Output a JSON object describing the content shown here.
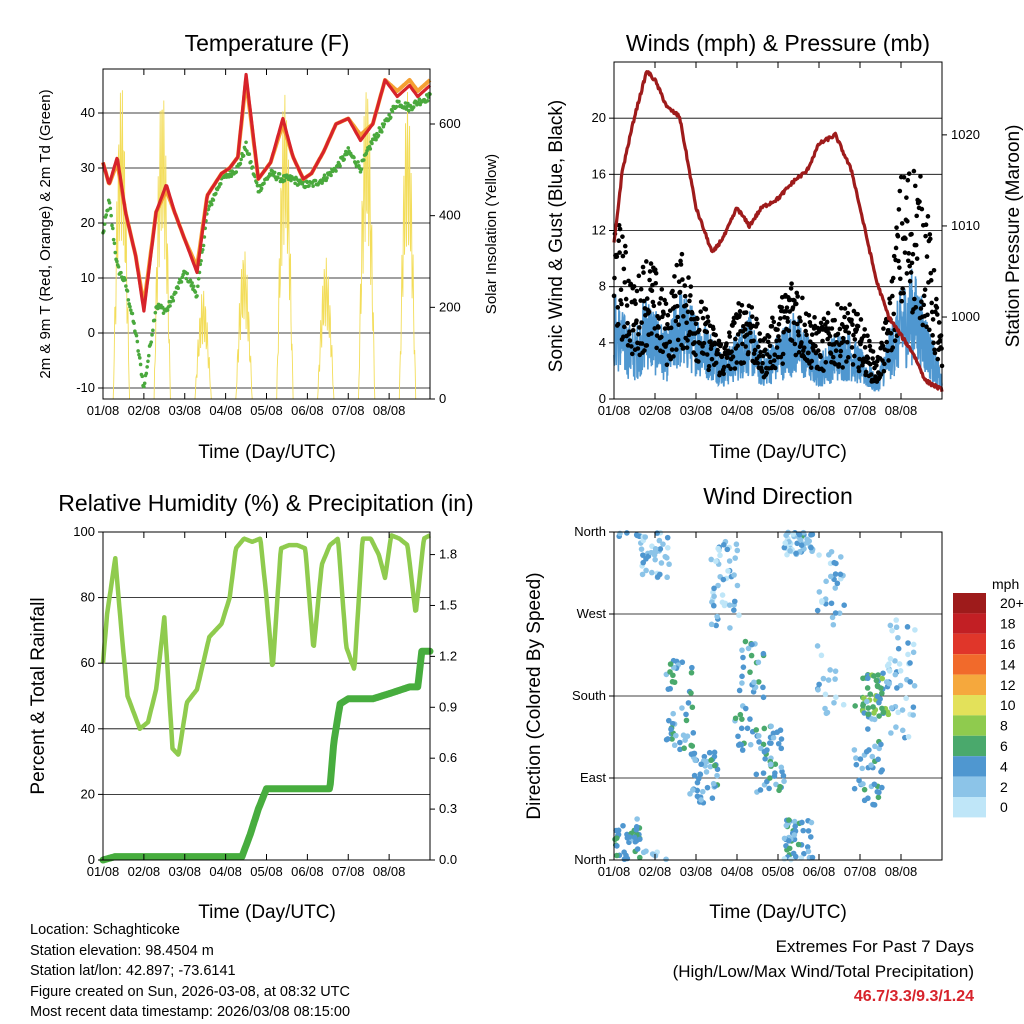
{
  "x_ticks": [
    "01/08",
    "02/08",
    "03/08",
    "04/08",
    "05/08",
    "06/08",
    "07/08",
    "08/08"
  ],
  "x_label": "Time (Day/UTC)",
  "info": {
    "location": "Location: Schaghticoke",
    "elevation": "Station elevation: 98.4504 m",
    "latlon": "Station lat/lon: 42.897; -73.6141",
    "created": "Figure created on Sun, 2026-03-08, at 08:32 UTC",
    "recent": "Most recent data timestamp: 2026/03/08 08:15:00"
  },
  "extremes": {
    "title": "Extremes For Past 7 Days",
    "subtitle": "(High/Low/Max Wind/Total Precipitation)",
    "value": "46.7/3.3/9.3/1.24"
  },
  "colors": {
    "temp2m": "#d7232b",
    "temp9m": "#f5a033",
    "dewpoint": "#4aa93d",
    "solar": "#f3dd5a",
    "wind": "#4f97d0",
    "gust": "#000000",
    "pressure": "#9e1b1b",
    "rh": "#8fcb4e",
    "precip": "#47ad3e"
  },
  "chart_data": [
    {
      "id": "temperature",
      "type": "line",
      "title": "Temperature (F)",
      "xlabel": "Time (Day/UTC)",
      "ylabel": "2m & 9m T (Red, Orange) & 2m Td (Green)",
      "ylabel_right": "Solar Insolation (Yellow)",
      "ylim": [
        -12,
        48
      ],
      "yticks": [
        -10,
        0,
        10,
        20,
        30,
        40
      ],
      "ylim_right": [
        0,
        720
      ],
      "yticks_right": [
        0,
        200,
        400,
        600
      ],
      "x": [
        0,
        0.15,
        0.35,
        0.55,
        0.8,
        1.0,
        1.3,
        1.55,
        1.75,
        2.0,
        2.3,
        2.55,
        2.9,
        3.1,
        3.3,
        3.5,
        3.8,
        4.1,
        4.4,
        4.65,
        4.9,
        5.1,
        5.4,
        5.7,
        6.0,
        6.3,
        6.6,
        6.9,
        7.2,
        7.5,
        7.7,
        8.0
      ],
      "series": [
        {
          "name": "2m T",
          "values": [
            31,
            27,
            32,
            22,
            14,
            4,
            22,
            27,
            22,
            17,
            11,
            25,
            29,
            30,
            32,
            47,
            28,
            31,
            39,
            32,
            28,
            29,
            33,
            38,
            39,
            35,
            38,
            46,
            43,
            45,
            43,
            45
          ]
        },
        {
          "name": "9m T",
          "values": [
            31,
            27,
            31,
            22,
            14,
            5,
            22,
            26,
            22,
            17,
            12,
            25,
            29,
            30,
            32,
            46,
            28,
            31,
            38,
            32,
            28,
            29,
            33,
            38,
            39,
            36,
            38,
            46,
            44,
            46,
            44,
            46
          ]
        },
        {
          "name": "2m Td",
          "values": [
            18,
            24,
            12,
            9,
            0,
            -10,
            5,
            4,
            7,
            11,
            7,
            22,
            28,
            29,
            30,
            34,
            26,
            29,
            28,
            28,
            27,
            27,
            28,
            30,
            33,
            30,
            35,
            38,
            42,
            41,
            42,
            43
          ]
        },
        {
          "name": "Solar Insolation",
          "axis": "right",
          "peaks_x": [
            0.45,
            1.45,
            2.45,
            3.45,
            4.45,
            5.45,
            6.45,
            7.45
          ],
          "peaks_y": [
            690,
            690,
            240,
            330,
            680,
            310,
            700,
            670
          ]
        }
      ]
    },
    {
      "id": "winds",
      "type": "line",
      "title": "Winds (mph) & Pressure (mb)",
      "xlabel": "Time (Day/UTC)",
      "ylabel": "Sonic Wind & Gust (Blue, Black)",
      "ylabel_right": "Station Pressure (Maroon)",
      "ylim": [
        0,
        24
      ],
      "yticks": [
        0,
        4,
        8,
        12,
        16,
        20
      ],
      "ylim_right": [
        991,
        1028
      ],
      "yticks_right": [
        1000,
        1010,
        1020
      ],
      "x": [
        0,
        0.2,
        0.5,
        0.8,
        1.0,
        1.3,
        1.6,
        2.0,
        2.4,
        2.7,
        3.0,
        3.3,
        3.6,
        4.0,
        4.4,
        4.7,
        5.0,
        5.4,
        5.8,
        6.1,
        6.4,
        6.7,
        7.0,
        7.3,
        7.6,
        8.0
      ],
      "series": [
        {
          "name": "Sonic Wind",
          "values": [
            5,
            4,
            3,
            5,
            4,
            3,
            5,
            4,
            3,
            2,
            3,
            4,
            2,
            3,
            4,
            3,
            2,
            3,
            3,
            2,
            1,
            3,
            5,
            6,
            4,
            1
          ]
        },
        {
          "name": "Gust",
          "values": [
            10,
            9,
            6,
            8,
            7,
            5,
            8,
            6,
            4,
            3,
            5,
            6,
            3,
            5,
            7,
            5,
            4,
            5,
            5,
            4,
            2,
            5,
            12,
            13,
            11,
            3
          ]
        },
        {
          "name": "Station Pressure",
          "axis": "right",
          "values": [
            1008,
            1016,
            1022,
            1027,
            1026,
            1023,
            1022,
            1012,
            1007,
            1009,
            1012,
            1010,
            1012,
            1013,
            1015,
            1016,
            1019,
            1020,
            1016,
            1010,
            1004,
            1000,
            998,
            996,
            993,
            992
          ]
        }
      ]
    },
    {
      "id": "humidity",
      "type": "line",
      "title": "Relative Humidity (%) & Precipitation (in)",
      "xlabel": "Time (Day/UTC)",
      "ylabel": "Percent & Total Rainfall",
      "ylim": [
        0,
        100
      ],
      "yticks": [
        0,
        20,
        40,
        60,
        80,
        100
      ],
      "ylim_right": [
        0,
        1.933
      ],
      "yticks_right": [
        0.0,
        0.3,
        0.6,
        0.9,
        1.2,
        1.5,
        1.8
      ],
      "series": [
        {
          "name": "RH",
          "x": [
            0,
            0.1,
            0.3,
            0.45,
            0.6,
            0.9,
            1.1,
            1.3,
            1.5,
            1.7,
            1.85,
            2.05,
            2.3,
            2.6,
            2.9,
            3.1,
            3.25,
            3.45,
            3.65,
            3.85,
            4.0,
            4.15,
            4.35,
            4.55,
            4.75,
            4.95,
            5.15,
            5.35,
            5.55,
            5.75,
            5.95,
            6.15,
            6.35,
            6.55,
            6.75,
            6.9,
            7.05,
            7.25,
            7.45,
            7.65,
            7.85,
            8.0
          ],
          "values": [
            60,
            75,
            92,
            70,
            50,
            40,
            42,
            52,
            74,
            34,
            32,
            48,
            52,
            68,
            72,
            80,
            95,
            98,
            97,
            98,
            80,
            58,
            95,
            96,
            96,
            95,
            64,
            90,
            96,
            98,
            65,
            58,
            98,
            98,
            93,
            86,
            99,
            98,
            96,
            75,
            98,
            99
          ]
        },
        {
          "name": "Total Precipitation",
          "axis": "right",
          "x": [
            0,
            0.3,
            1.0,
            2.0,
            3.0,
            3.4,
            3.6,
            3.8,
            4.0,
            4.5,
            5.0,
            5.55,
            5.65,
            5.8,
            6.0,
            6.6,
            7.0,
            7.5,
            7.7,
            7.8,
            8.0
          ],
          "values": [
            0,
            0.02,
            0.02,
            0.02,
            0.02,
            0.02,
            0.15,
            0.3,
            0.42,
            0.42,
            0.42,
            0.42,
            0.7,
            0.92,
            0.95,
            0.95,
            0.98,
            1.02,
            1.02,
            1.23,
            1.23
          ]
        }
      ]
    },
    {
      "id": "direction",
      "type": "scatter",
      "title": "Wind Direction",
      "xlabel": "Time (Day/UTC)",
      "ylabel": "Direction (Colored By Speed)",
      "yticks": [
        "North",
        "East",
        "South",
        "West",
        "North"
      ],
      "ylim": [
        0,
        360
      ],
      "legend_title": "mph",
      "legend_labels": [
        "0",
        "2",
        "4",
        "6",
        "8",
        "10",
        "12",
        "14",
        "16",
        "18",
        "20+"
      ],
      "legend_colors": [
        "#bfe6f8",
        "#8cc4e8",
        "#4f97d0",
        "#4aa96c",
        "#8fcb4e",
        "#e3e15a",
        "#f5a83d",
        "#f16a2b",
        "#e0362a",
        "#c21f24",
        "#9e1b1b"
      ],
      "clusters": [
        {
          "x": 0.3,
          "dir": 20,
          "spread": 25,
          "speed": 4
        },
        {
          "x": 1.0,
          "dir": 340,
          "spread": 30,
          "speed": 2
        },
        {
          "x": 1.6,
          "dir": 170,
          "spread": 50,
          "speed": 4
        },
        {
          "x": 2.2,
          "dir": 90,
          "spread": 30,
          "speed": 4
        },
        {
          "x": 2.7,
          "dir": 300,
          "spread": 50,
          "speed": 2
        },
        {
          "x": 3.3,
          "dir": 180,
          "spread": 60,
          "speed": 4
        },
        {
          "x": 3.8,
          "dir": 110,
          "spread": 40,
          "speed": 4
        },
        {
          "x": 4.5,
          "dir": 20,
          "spread": 25,
          "speed": 4
        },
        {
          "x": 4.5,
          "dir": 350,
          "spread": 15,
          "speed": 2
        },
        {
          "x": 5.3,
          "dir": 250,
          "spread": 90,
          "speed": 2
        },
        {
          "x": 6.4,
          "dir": 180,
          "spread": 25,
          "speed": 6
        },
        {
          "x": 6.2,
          "dir": 120,
          "spread": 60,
          "speed": 4
        },
        {
          "x": 7.0,
          "dir": 200,
          "spread": 70,
          "speed": 2
        }
      ]
    }
  ]
}
